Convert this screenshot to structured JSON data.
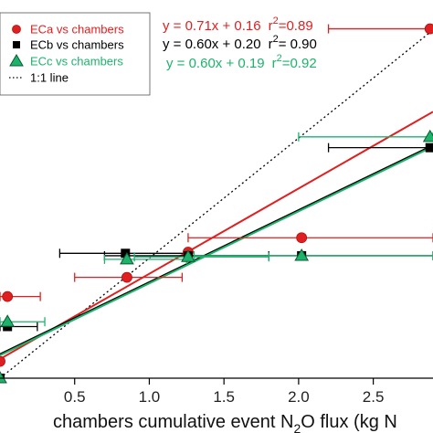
{
  "chart_data": {
    "type": "scatter",
    "xlabel_prefix": "chambers cumulative event N",
    "xlabel_sub": "2",
    "xlabel_suffix": "O flux (kg N",
    "xlim": [
      0,
      2.9
    ],
    "ylim": [
      0,
      3.15
    ],
    "xticks": [
      {
        "value": 0.5,
        "label": "0.5"
      },
      {
        "value": 1.0,
        "label": "1.0"
      },
      {
        "value": 1.5,
        "label": "1.5"
      },
      {
        "value": 2.0,
        "label": "2.0"
      },
      {
        "value": 2.5,
        "label": "2.5"
      }
    ],
    "legend": [
      {
        "label": "ECa vs chambers",
        "color": "#e02020",
        "marker": "circle"
      },
      {
        "label": "ECb vs chambers",
        "color": "#000000",
        "marker": "square"
      },
      {
        "label": "ECc vs chambers",
        "color": "#1db36b",
        "marker": "triangle"
      },
      {
        "label": "1:1 line",
        "color": "#000000",
        "marker": "dotted-line"
      }
    ],
    "equations": [
      {
        "eq": "y = 0.71x + 0.16",
        "r_label": "r",
        "r_sup": "2",
        "r_value": "=0.89",
        "color": "#e02020"
      },
      {
        "eq": "y = 0.60x + 0.20",
        "r_label": "r",
        "r_sup": "2",
        "r_value": "= 0.90",
        "color": "#000000"
      },
      {
        "eq": "y = 0.60x + 0.19",
        "r_label": "r",
        "r_sup": "2",
        "r_value": "=0.92",
        "color": "#1db36b"
      }
    ],
    "one_to_one": {
      "color": "#000000"
    },
    "series": [
      {
        "name": "ECa vs chambers",
        "color": "#e02020",
        "marker": "circle",
        "fit": {
          "slope": 0.71,
          "intercept": 0.16
        },
        "points": [
          {
            "x": 0.0,
            "y": 0.14,
            "xerr": [
              0.0,
              0.0
            ]
          },
          {
            "x": 0.05,
            "y": 0.68,
            "xerr": [
              0.0,
              0.27
            ]
          },
          {
            "x": 0.85,
            "y": 0.84,
            "xerr": [
              0.5,
              1.22
            ]
          },
          {
            "x": 1.26,
            "y": 1.05,
            "xerr": [
              1.26,
              1.26
            ]
          },
          {
            "x": 2.02,
            "y": 1.17,
            "xerr": [
              1.26,
              2.9
            ]
          },
          {
            "x": 2.88,
            "y": 2.91,
            "xerr": [
              2.2,
              2.9
            ]
          }
        ]
      },
      {
        "name": "ECb vs chambers",
        "color": "#000000",
        "marker": "square",
        "fit": {
          "slope": 0.6,
          "intercept": 0.2
        },
        "points": [
          {
            "x": 0.0,
            "y": 0.0,
            "xerr": [
              0.0,
              0.0
            ]
          },
          {
            "x": 0.05,
            "y": 0.43,
            "xerr": [
              0.0,
              0.25
            ]
          },
          {
            "x": 0.84,
            "y": 1.04,
            "xerr": [
              0.4,
              1.25
            ]
          },
          {
            "x": 1.26,
            "y": 1.02,
            "xerr": [
              0.7,
              1.8
            ]
          },
          {
            "x": 2.02,
            "y": 1.02,
            "xerr": [
              1.26,
              2.9
            ]
          },
          {
            "x": 2.88,
            "y": 1.92,
            "xerr": [
              2.2,
              2.9
            ]
          }
        ]
      },
      {
        "name": "ECc vs chambers",
        "color": "#1db36b",
        "marker": "triangle",
        "fit": {
          "slope": 0.6,
          "intercept": 0.19
        },
        "points": [
          {
            "x": 0.0,
            "y": 0.0,
            "xerr": [
              0.0,
              0.0
            ]
          },
          {
            "x": 0.05,
            "y": 0.47,
            "xerr": [
              0.0,
              0.3
            ]
          },
          {
            "x": 0.85,
            "y": 0.99,
            "xerr": [
              0.7,
              1.25
            ]
          },
          {
            "x": 1.26,
            "y": 1.01,
            "xerr": [
              0.9,
              1.8
            ]
          },
          {
            "x": 2.02,
            "y": 1.02,
            "xerr": [
              1.3,
              2.9
            ]
          },
          {
            "x": 2.88,
            "y": 2.01,
            "xerr": [
              2.0,
              2.9
            ]
          }
        ]
      }
    ]
  }
}
